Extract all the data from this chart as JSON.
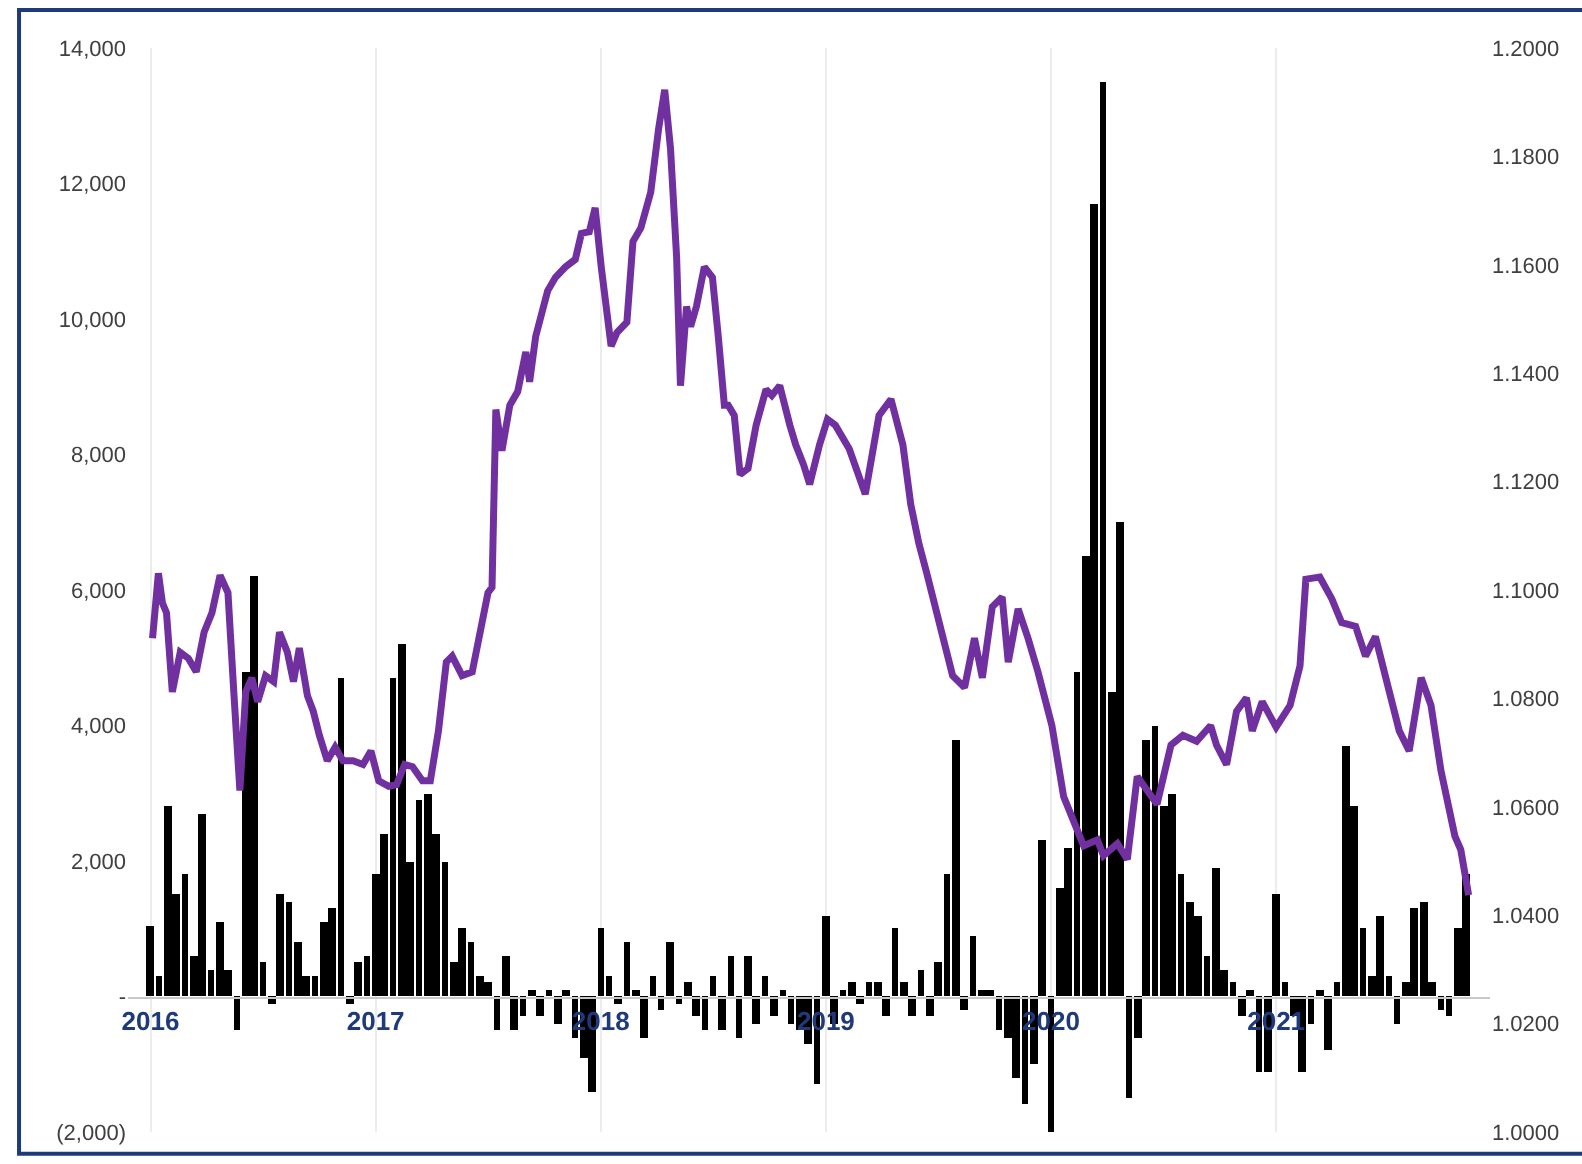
{
  "chart_data": {
    "type": "bar",
    "xlim": [
      2015.9,
      2021.95
    ],
    "xticks": [
      2016,
      2017,
      2018,
      2019,
      2020,
      2021
    ],
    "ylim": [
      -2000,
      14000
    ],
    "yticks": [
      {
        "value": -2000,
        "label": "(2,000)"
      },
      {
        "value": 0,
        "label": "-"
      },
      {
        "value": 2000,
        "label": "2,000"
      },
      {
        "value": 4000,
        "label": "4,000"
      },
      {
        "value": 6000,
        "label": "6,000"
      },
      {
        "value": 8000,
        "label": "8,000"
      },
      {
        "value": 10000,
        "label": "10,000"
      },
      {
        "value": 12000,
        "label": "12,000"
      },
      {
        "value": 14000,
        "label": "14,000"
      }
    ],
    "y2lim": [
      1.0,
      1.2
    ],
    "y2ticks": [
      {
        "value": 1.0,
        "label": "1.0000"
      },
      {
        "value": 1.02,
        "label": "1.0200"
      },
      {
        "value": 1.04,
        "label": "1.0400"
      },
      {
        "value": 1.06,
        "label": "1.0600"
      },
      {
        "value": 1.08,
        "label": "1.0800"
      },
      {
        "value": 1.1,
        "label": "1.1000"
      },
      {
        "value": 1.12,
        "label": "1.1200"
      },
      {
        "value": 1.14,
        "label": "1.1400"
      },
      {
        "value": 1.16,
        "label": "1.1600"
      },
      {
        "value": 1.18,
        "label": "1.1800"
      },
      {
        "value": 1.2,
        "label": "1.2000"
      }
    ],
    "grid": "x",
    "series": [
      {
        "color": "#000000",
        "x": [
          2016.0,
          2016.038,
          2016.077,
          2016.115,
          2016.154,
          2016.192,
          2016.231,
          2016.269,
          2016.308,
          2016.346,
          2016.385,
          2016.423,
          2016.462,
          2016.5,
          2016.538,
          2016.577,
          2016.615,
          2016.654,
          2016.692,
          2016.731,
          2016.769,
          2016.808,
          2016.846,
          2016.885,
          2016.923,
          2016.962,
          2017.0,
          2017.038,
          2017.077,
          2017.115,
          2017.154,
          2017.192,
          2017.231,
          2017.269,
          2017.308,
          2017.346,
          2017.385,
          2017.423,
          2017.462,
          2017.5,
          2017.538,
          2017.577,
          2017.615,
          2017.654,
          2017.692,
          2017.731,
          2017.769,
          2017.808,
          2017.846,
          2017.885,
          2017.923,
          2017.962,
          2018.0,
          2018.038,
          2018.077,
          2018.115,
          2018.154,
          2018.192,
          2018.231,
          2018.269,
          2018.308,
          2018.346,
          2018.385,
          2018.423,
          2018.462,
          2018.5,
          2018.538,
          2018.577,
          2018.615,
          2018.654,
          2018.692,
          2018.731,
          2018.769,
          2018.808,
          2018.846,
          2018.885,
          2018.923,
          2018.962,
          2019.0,
          2019.038,
          2019.077,
          2019.115,
          2019.154,
          2019.192,
          2019.231,
          2019.269,
          2019.308,
          2019.346,
          2019.385,
          2019.423,
          2019.462,
          2019.5,
          2019.538,
          2019.577,
          2019.615,
          2019.654,
          2019.692,
          2019.731,
          2019.769,
          2019.808,
          2019.846,
          2019.885,
          2019.923,
          2019.962,
          2020.0,
          2020.038,
          2020.077,
          2020.115,
          2020.154,
          2020.192,
          2020.231,
          2020.269,
          2020.308,
          2020.346,
          2020.385,
          2020.423,
          2020.462,
          2020.5,
          2020.538,
          2020.577,
          2020.615,
          2020.654,
          2020.692,
          2020.731,
          2020.769,
          2020.808,
          2020.846,
          2020.885,
          2020.923,
          2020.962,
          2021.0,
          2021.038,
          2021.077,
          2021.115,
          2021.154,
          2021.192,
          2021.231,
          2021.269,
          2021.308,
          2021.346,
          2021.385,
          2021.423,
          2021.462,
          2021.5,
          2021.538,
          2021.577,
          2021.615,
          2021.654,
          2021.692,
          2021.731,
          2021.769,
          2021.808,
          2021.846
        ],
        "values": [
          1050,
          300,
          2800,
          1500,
          1800,
          600,
          2700,
          400,
          1100,
          400,
          -500,
          4800,
          6200,
          500,
          -100,
          1500,
          1400,
          800,
          300,
          300,
          1100,
          1300,
          4700,
          -100,
          500,
          600,
          1800,
          2400,
          4700,
          5200,
          2000,
          2900,
          3000,
          2400,
          2000,
          500,
          1000,
          800,
          300,
          200,
          -500,
          600,
          -500,
          -300,
          100,
          -300,
          100,
          -400,
          100,
          -600,
          -900,
          -1400,
          1000,
          300,
          -100,
          800,
          100,
          -600,
          300,
          -200,
          800,
          -100,
          200,
          -300,
          -500,
          300,
          -500,
          600,
          -600,
          600,
          -400,
          300,
          -300,
          100,
          -400,
          -500,
          -700,
          -1300,
          1200,
          -400,
          100,
          200,
          -100,
          200,
          200,
          -300,
          1000,
          200,
          -300,
          400,
          -300,
          500,
          1800,
          3800,
          -200,
          900,
          100,
          100,
          -500,
          -600,
          -1200,
          -1600,
          -1000,
          2300,
          -2000,
          1600,
          2200,
          4800,
          6500,
          11700,
          13500,
          4500,
          7000,
          -1500,
          -600,
          3800,
          4000,
          2800,
          3000,
          1800,
          1400,
          1200,
          600,
          1900,
          400,
          200,
          -300,
          100,
          -1100,
          -1100,
          1500,
          200,
          -300,
          -1100,
          -400,
          100,
          -800,
          200,
          3700,
          2800,
          1000,
          300,
          1200,
          300,
          -400,
          200,
          1300,
          1400,
          200,
          -200,
          -300,
          1000,
          1800
        ]
      },
      {
        "type": "line",
        "axis": "y2",
        "color": "#7030a0",
        "line_style": "solid",
        "x": [
          2016.009,
          2016.035,
          2016.053,
          2016.071,
          2016.097,
          2016.132,
          2016.168,
          2016.203,
          2016.238,
          2016.273,
          2016.309,
          2016.344,
          2016.37,
          2016.397,
          2016.423,
          2016.45,
          2016.476,
          2016.511,
          2016.547,
          2016.573,
          2016.608,
          2016.635,
          2016.661,
          2016.697,
          2016.723,
          2016.75,
          2016.785,
          2016.82,
          2016.855,
          2016.899,
          2016.944,
          2016.979,
          2017.014,
          2017.058,
          2017.093,
          2017.129,
          2017.164,
          2017.208,
          2017.243,
          2017.279,
          2017.314,
          2017.34,
          2017.384,
          2017.429,
          2017.455,
          2017.499,
          2017.517,
          2017.534,
          2017.561,
          2017.596,
          2017.631,
          2017.667,
          2017.684,
          2017.711,
          2017.764,
          2017.799,
          2017.843,
          2017.887,
          2017.914,
          2017.949,
          2017.975,
          2018.002,
          2018.046,
          2018.072,
          2018.116,
          2018.143,
          2018.178,
          2018.222,
          2018.257,
          2018.284,
          2018.31,
          2018.337,
          2018.354,
          2018.381,
          2018.399,
          2018.425,
          2018.46,
          2018.496,
          2018.522,
          2018.549,
          2018.566,
          2018.593,
          2018.619,
          2018.654,
          2018.69,
          2018.734,
          2018.76,
          2018.795,
          2018.84,
          2018.866,
          2018.901,
          2018.928,
          2018.972,
          2019.007,
          2019.042,
          2019.104,
          2019.175,
          2019.236,
          2019.289,
          2019.342,
          2019.377,
          2019.413,
          2019.448,
          2019.563,
          2019.616,
          2019.66,
          2019.695,
          2019.739,
          2019.783,
          2019.81,
          2019.854,
          2019.898,
          2019.942,
          2020.004,
          2020.056,
          2020.145,
          2020.206,
          2020.233,
          2020.295,
          2020.339,
          2020.383,
          2020.471,
          2020.533,
          2020.586,
          2020.647,
          2020.709,
          2020.735,
          2020.78,
          2020.824,
          2020.868,
          2020.894,
          2020.938,
          2021.0,
          2021.062,
          2021.106,
          2021.132,
          2021.194,
          2021.247,
          2021.291,
          2021.353,
          2021.397,
          2021.441,
          2021.503,
          2021.547,
          2021.591,
          2021.644,
          2021.688,
          2021.732,
          2021.794,
          2021.82,
          2021.855
        ],
        "values": [
          1.0911,
          1.1031,
          1.0976,
          1.0958,
          1.0812,
          1.0885,
          1.0874,
          1.0849,
          1.0922,
          1.0958,
          1.1027,
          1.0995,
          1.0812,
          1.063,
          1.0812,
          1.0838,
          1.0794,
          1.0842,
          1.0831,
          1.0922,
          1.0885,
          1.0831,
          1.0893,
          1.0805,
          1.0776,
          1.0732,
          1.0685,
          1.071,
          1.0685,
          1.0685,
          1.0678,
          1.0703,
          1.0648,
          1.0638,
          1.0641,
          1.0678,
          1.0674,
          1.0648,
          1.0648,
          1.074,
          1.0867,
          1.0878,
          1.0842,
          1.0849,
          1.0903,
          1.0995,
          1.1005,
          1.1333,
          1.1257,
          1.1341,
          1.1366,
          1.1439,
          1.1384,
          1.1468,
          1.1552,
          1.1577,
          1.1596,
          1.161,
          1.1658,
          1.1661,
          1.1705,
          1.1596,
          1.145,
          1.1475,
          1.1494,
          1.1643,
          1.1668,
          1.1734,
          1.1851,
          1.1923,
          1.1814,
          1.1614,
          1.1377,
          1.1523,
          1.1486,
          1.1523,
          1.1596,
          1.1577,
          1.1468,
          1.1341,
          1.1341,
          1.1322,
          1.1213,
          1.1224,
          1.1304,
          1.137,
          1.1359,
          1.1377,
          1.1304,
          1.1268,
          1.1231,
          1.1195,
          1.1268,
          1.1315,
          1.1304,
          1.126,
          1.1177,
          1.1322,
          1.1352,
          1.1268,
          1.1158,
          1.1086,
          1.1031,
          1.0842,
          1.082,
          1.0911,
          1.0838,
          1.0969,
          1.0987,
          1.0867,
          1.0965,
          1.0911,
          1.0849,
          1.075,
          1.0619,
          1.0528,
          1.0539,
          1.051,
          1.0532,
          1.0503,
          1.0656,
          1.0605,
          1.0714,
          1.0732,
          1.0721,
          1.075,
          1.0714,
          1.0678,
          1.0776,
          1.0801,
          1.074,
          1.0794,
          1.0747,
          1.0787,
          1.086,
          1.102,
          1.1024,
          1.0984,
          1.094,
          1.0933,
          1.0878,
          1.0914,
          1.0812,
          1.074,
          1.0703,
          1.0838,
          1.0787,
          1.0667,
          1.0546,
          1.0521,
          1.0437
        ]
      }
    ]
  }
}
